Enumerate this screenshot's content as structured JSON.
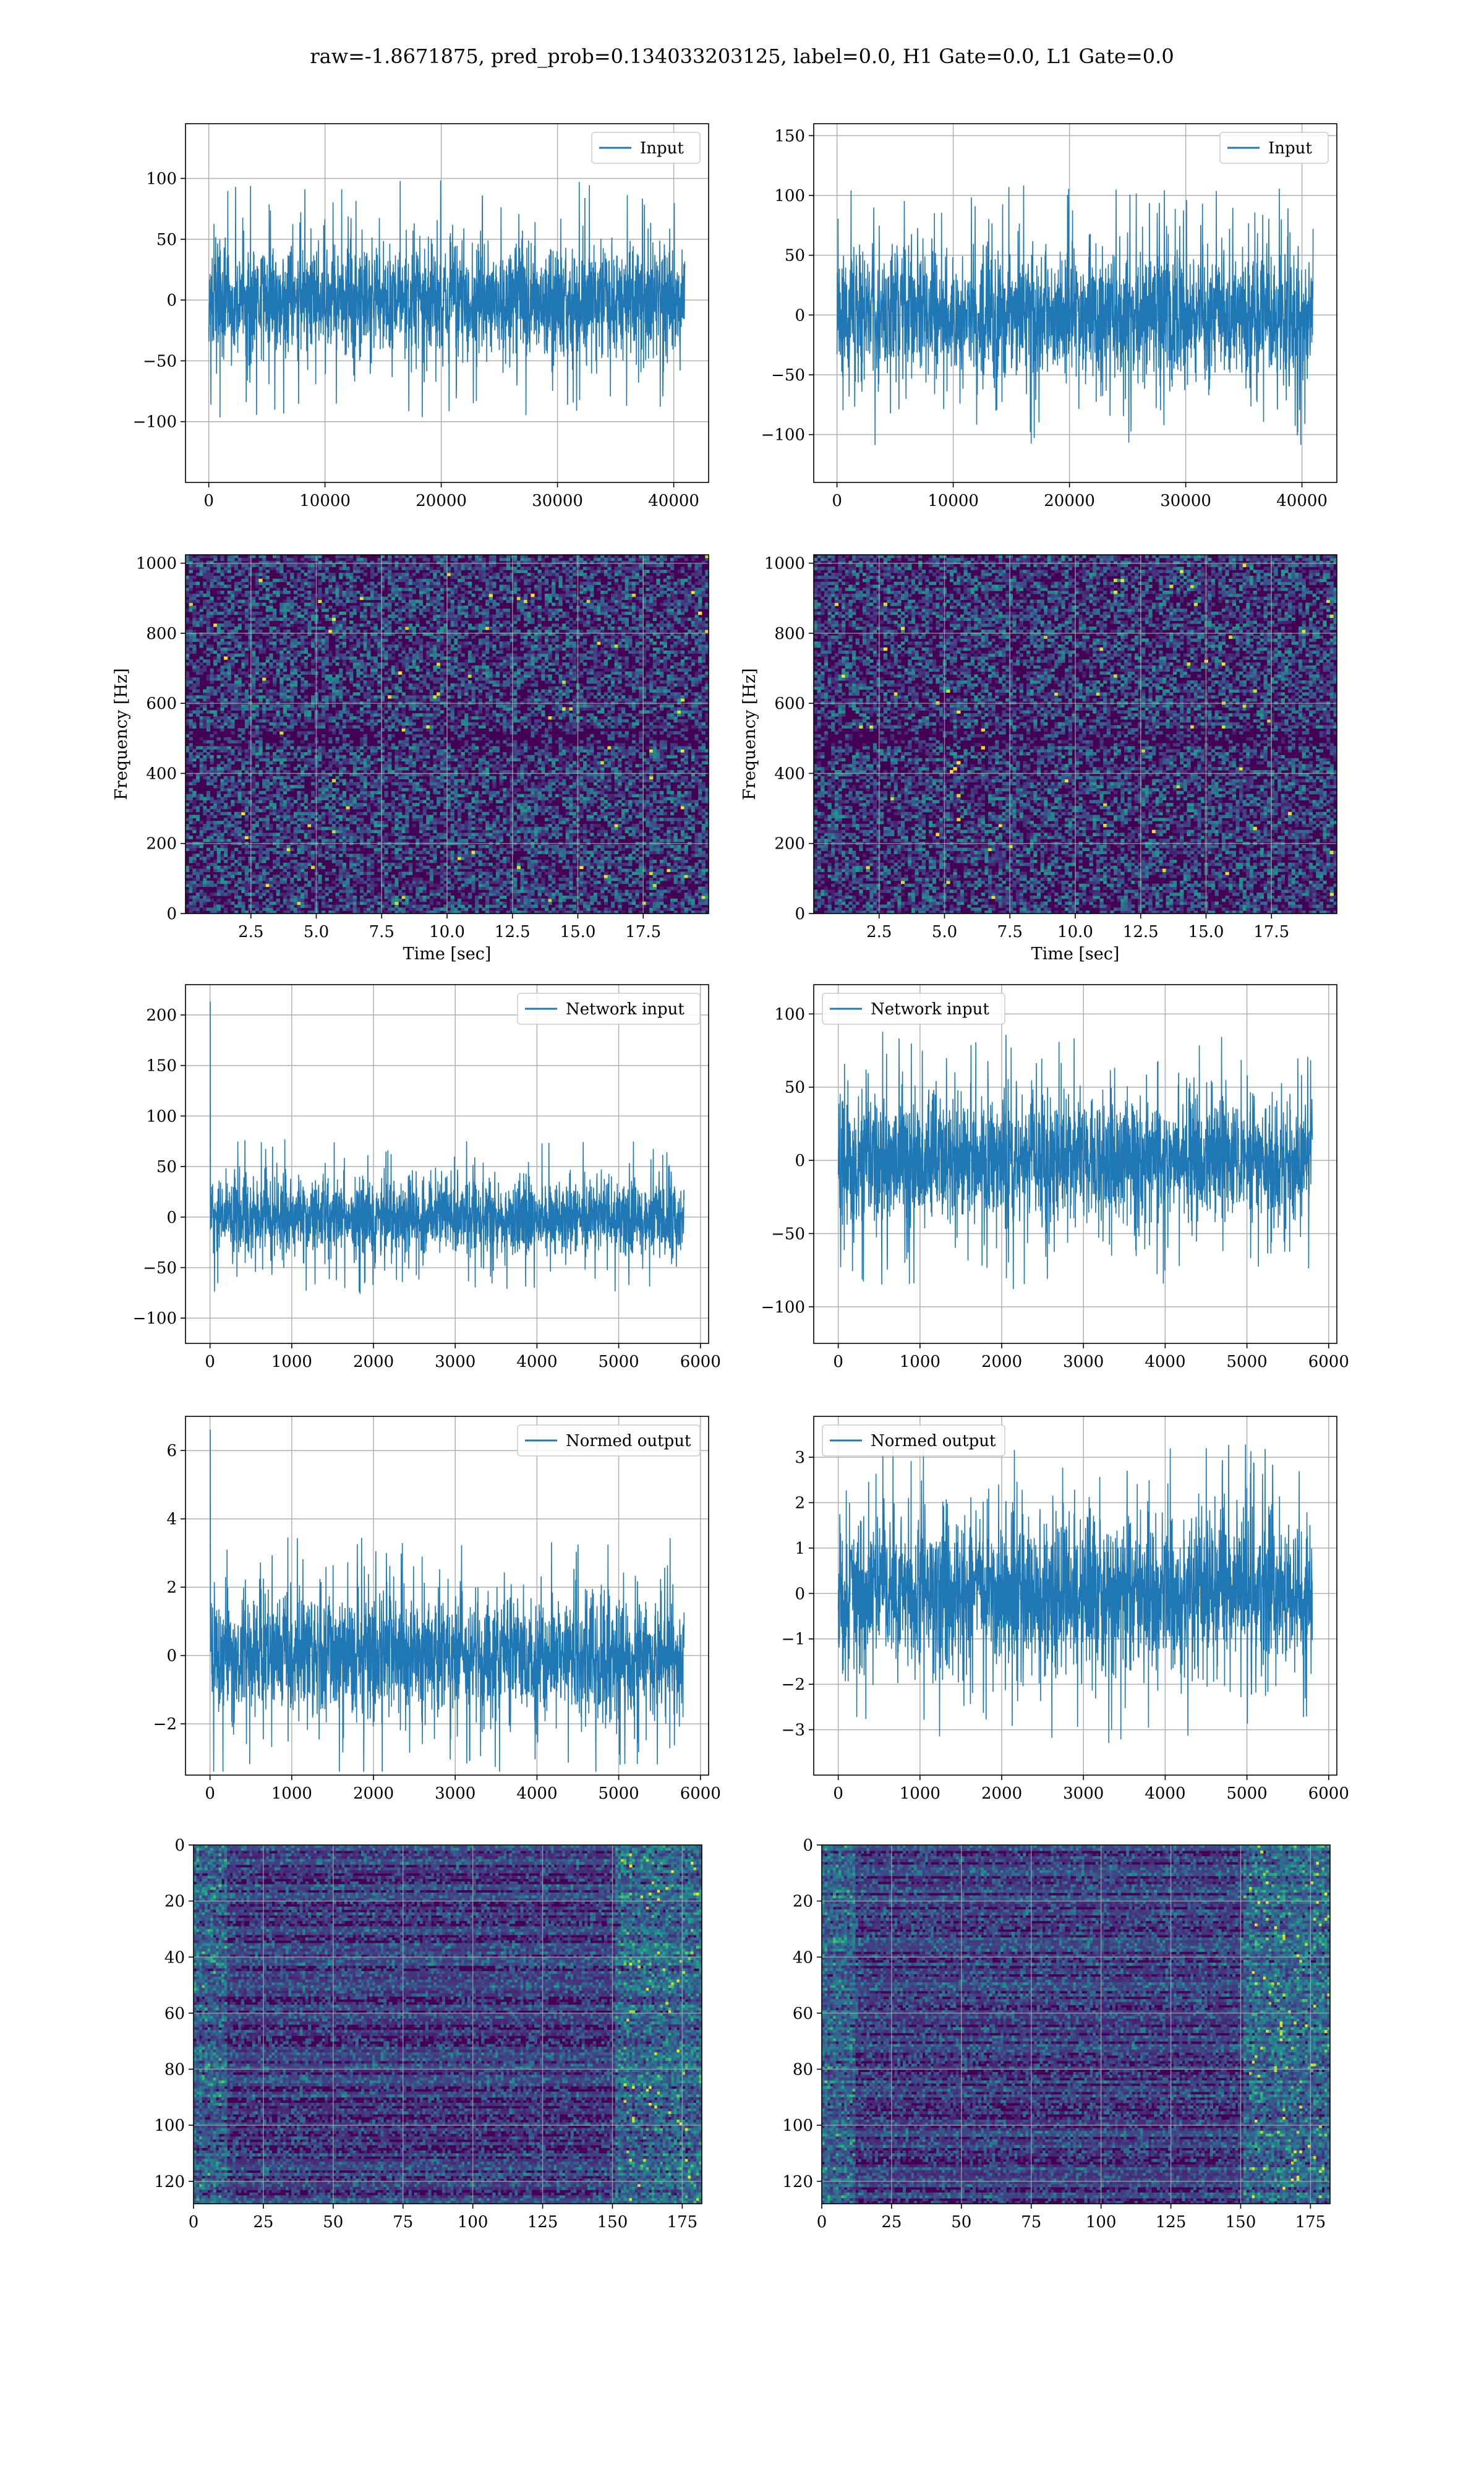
{
  "figure": {
    "title": "raw=-1.8671875, pred_prob=0.134033203125, label=0.0, H1 Gate=0.0, L1 Gate=0.0"
  },
  "colors": {
    "line": "#1f77b4",
    "grid": "#b0b0b0",
    "viridis_low": "#440154",
    "viridis_mid": "#21918c",
    "viridis_high": "#fde725"
  },
  "chart_data": [
    {
      "id": "input_h1",
      "type": "line",
      "legend": "Input",
      "legend_loc": "top-right",
      "xlim": [
        -2000,
        43000
      ],
      "ylim": [
        -150,
        145
      ],
      "xticks": [
        0,
        10000,
        20000,
        30000,
        40000
      ],
      "yticks": [
        -100,
        -50,
        0,
        50,
        100
      ],
      "signal": {
        "n": 40960,
        "x_end": 40960,
        "core": 45,
        "peak": 130,
        "min": -130,
        "spike_at": null
      },
      "grid": true
    },
    {
      "id": "input_l1",
      "type": "line",
      "legend": "Input",
      "legend_loc": "top-right",
      "xlim": [
        -2000,
        43000
      ],
      "ylim": [
        -140,
        160
      ],
      "xticks": [
        0,
        10000,
        20000,
        30000,
        40000
      ],
      "yticks": [
        -100,
        -50,
        0,
        50,
        100,
        150
      ],
      "signal": {
        "n": 40960,
        "x_end": 40960,
        "core": 50,
        "peak": 148,
        "min": -125,
        "spike_at": null
      },
      "grid": true
    },
    {
      "id": "spec_h1",
      "type": "heatmap",
      "kind": "spectrogram",
      "xlabel": "Time [sec]",
      "ylabel": "Frequency [Hz]",
      "xlim": [
        0,
        20
      ],
      "ylim": [
        0,
        1024
      ],
      "xticks": [
        2.5,
        5.0,
        7.5,
        10.0,
        12.5,
        15.0,
        17.5
      ],
      "yticks": [
        0,
        200,
        400,
        600,
        800,
        1000
      ],
      "colormap": "viridis",
      "grid": true
    },
    {
      "id": "spec_l1",
      "type": "heatmap",
      "kind": "spectrogram",
      "xlabel": "Time [sec]",
      "ylabel": "Frequency [Hz]",
      "xlim": [
        0,
        20
      ],
      "ylim": [
        0,
        1024
      ],
      "xticks": [
        2.5,
        5.0,
        7.5,
        10.0,
        12.5,
        15.0,
        17.5
      ],
      "yticks": [
        0,
        200,
        400,
        600,
        800,
        1000
      ],
      "colormap": "viridis",
      "grid": true
    },
    {
      "id": "netin_h1",
      "type": "line",
      "legend": "Network input",
      "legend_loc": "top-right",
      "xlim": [
        -300,
        6100
      ],
      "ylim": [
        -125,
        230
      ],
      "xticks": [
        0,
        1000,
        2000,
        3000,
        4000,
        5000,
        6000
      ],
      "yticks": [
        -100,
        -50,
        0,
        50,
        100,
        150,
        200
      ],
      "signal": {
        "n": 5800,
        "x_end": 5800,
        "core": 35,
        "peak": 120,
        "min": -110,
        "spike_at": 0,
        "spike_val": 213
      },
      "grid": true
    },
    {
      "id": "netin_l1",
      "type": "line",
      "legend": "Network input",
      "legend_loc": "top-left",
      "xlim": [
        -300,
        6100
      ],
      "ylim": [
        -125,
        120
      ],
      "xticks": [
        0,
        1000,
        2000,
        3000,
        4000,
        5000,
        6000
      ],
      "yticks": [
        -100,
        -50,
        0,
        50,
        100
      ],
      "signal": {
        "n": 5800,
        "x_end": 5800,
        "core": 40,
        "peak": 105,
        "min": -115,
        "spike_at": null
      },
      "grid": true
    },
    {
      "id": "normed_h1",
      "type": "line",
      "legend": "Normed output",
      "legend_loc": "top-right",
      "xlim": [
        -300,
        6100
      ],
      "ylim": [
        -3.5,
        7.0
      ],
      "xticks": [
        0,
        1000,
        2000,
        3000,
        4000,
        5000,
        6000
      ],
      "yticks": [
        -2,
        0,
        2,
        4,
        6
      ],
      "signal": {
        "n": 5800,
        "x_end": 5800,
        "core": 1.6,
        "peak": 3.8,
        "min": -3.4,
        "spike_at": 0,
        "spike_val": 6.6
      },
      "grid": true
    },
    {
      "id": "normed_l1",
      "type": "line",
      "legend": "Normed output",
      "legend_loc": "top-left",
      "xlim": [
        -300,
        6100
      ],
      "ylim": [
        -4.0,
        3.9
      ],
      "xticks": [
        0,
        1000,
        2000,
        3000,
        4000,
        5000,
        6000
      ],
      "yticks": [
        -3,
        -2,
        -1,
        0,
        1,
        2,
        3
      ],
      "signal": {
        "n": 5800,
        "x_end": 5800,
        "core": 1.5,
        "peak": 3.6,
        "min": -3.6,
        "spike_at": null
      },
      "grid": true
    },
    {
      "id": "features_h1",
      "type": "heatmap",
      "kind": "feature_map",
      "xlim": [
        0,
        182
      ],
      "ylim": [
        128,
        0
      ],
      "xticks": [
        0,
        25,
        50,
        75,
        100,
        125,
        150,
        175
      ],
      "yticks": [
        0,
        20,
        40,
        60,
        80,
        100,
        120
      ],
      "colormap": "viridis",
      "grid": true
    },
    {
      "id": "features_l1",
      "type": "heatmap",
      "kind": "feature_map",
      "xlim": [
        0,
        182
      ],
      "ylim": [
        128,
        0
      ],
      "xticks": [
        0,
        25,
        50,
        75,
        100,
        125,
        150,
        175
      ],
      "yticks": [
        0,
        20,
        40,
        60,
        80,
        100,
        120
      ],
      "colormap": "viridis",
      "grid": true
    }
  ]
}
